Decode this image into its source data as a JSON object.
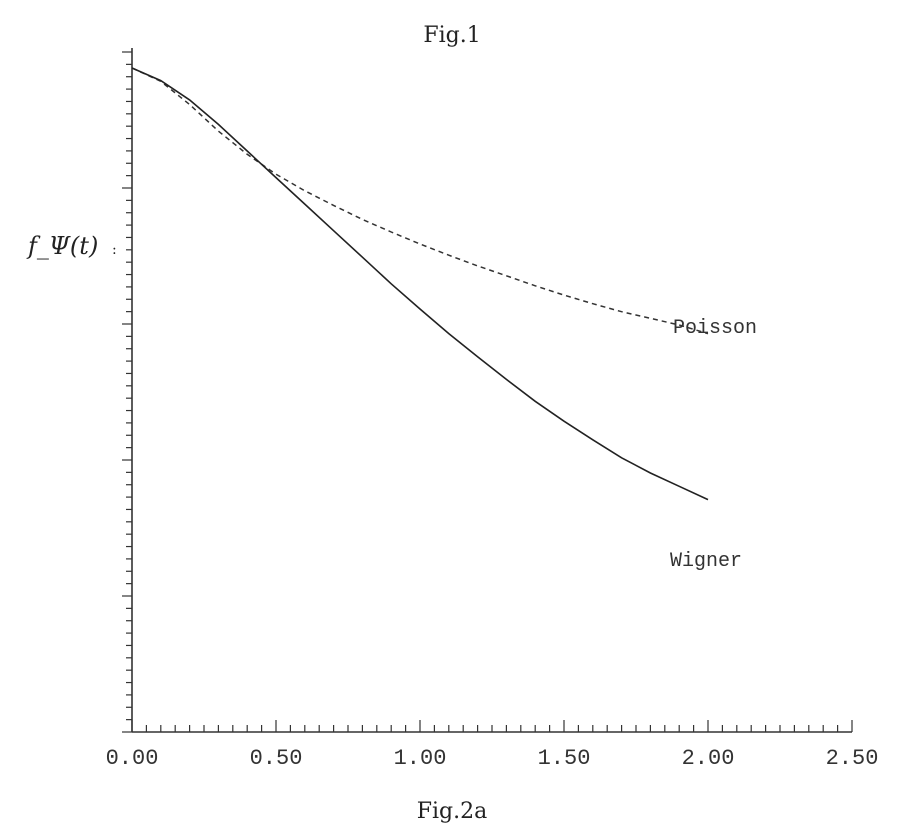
{
  "figure": {
    "caption_top": "Fig.1",
    "caption_bottom": "Fig.2a"
  },
  "chart_data": {
    "type": "line",
    "title": "",
    "xlabel": "",
    "ylabel": "f_Ψ(t)",
    "xlim": [
      0,
      2.5
    ],
    "ylim": [
      0,
      1
    ],
    "x_tick_labels": [
      "0.00",
      "0.50",
      "1.00",
      "1.50",
      "2.00",
      "2.50"
    ],
    "y_ticks_labeled": false,
    "grid": false,
    "series": [
      {
        "name": "Poisson",
        "style": "dashed",
        "x": [
          0.0,
          0.1,
          0.2,
          0.3,
          0.4,
          0.5,
          0.6,
          0.7,
          0.8,
          0.9,
          1.0,
          1.1,
          1.2,
          1.3,
          1.4,
          1.5,
          1.6,
          1.7,
          1.8,
          1.9,
          2.0
        ],
        "y": [
          1.0,
          0.98,
          0.945,
          0.905,
          0.87,
          0.84,
          0.815,
          0.793,
          0.772,
          0.753,
          0.735,
          0.718,
          0.702,
          0.687,
          0.672,
          0.658,
          0.645,
          0.633,
          0.623,
          0.613,
          0.6
        ]
      },
      {
        "name": "Wigner",
        "style": "solid",
        "x": [
          0.0,
          0.1,
          0.2,
          0.3,
          0.4,
          0.5,
          0.6,
          0.7,
          0.8,
          0.9,
          1.0,
          1.1,
          1.2,
          1.3,
          1.4,
          1.5,
          1.6,
          1.7,
          1.8,
          1.9,
          2.0
        ],
        "y": [
          1.0,
          0.981,
          0.952,
          0.915,
          0.875,
          0.835,
          0.795,
          0.755,
          0.715,
          0.675,
          0.637,
          0.6,
          0.565,
          0.531,
          0.498,
          0.468,
          0.44,
          0.413,
          0.39,
          0.37,
          0.35
        ]
      }
    ]
  }
}
